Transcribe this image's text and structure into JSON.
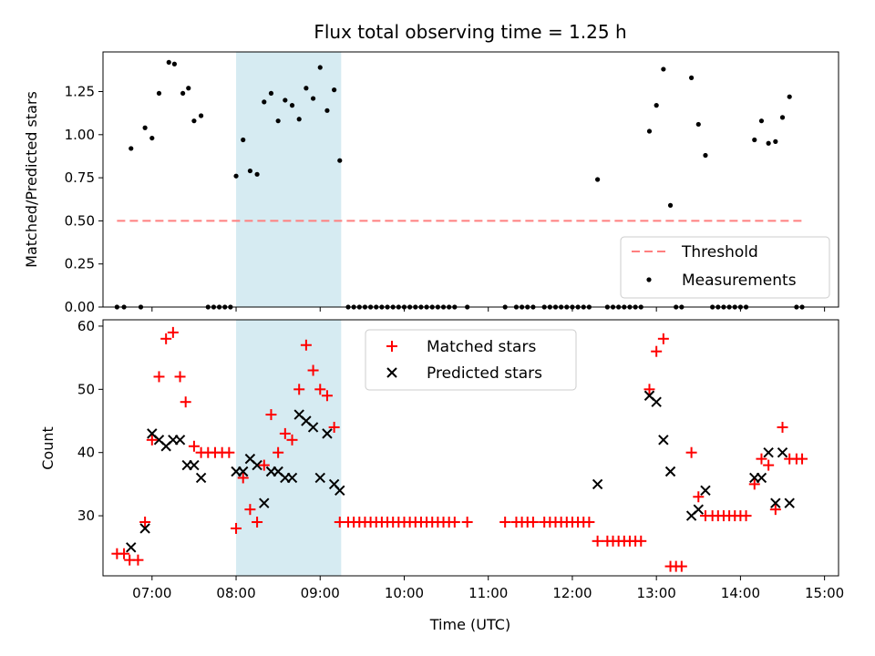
{
  "figure_title": "Flux total observing time = 1.25 h",
  "colors": {
    "threshold": "#ff7f7f",
    "measurement": "#000000",
    "matched": "#ff0000",
    "predicted": "#000000",
    "highlight": "#add8e6"
  },
  "chart_data": [
    {
      "type": "scatter",
      "title": "Flux total observing time = 1.25 h",
      "xlabel": "",
      "ylabel": "Matched/Predicted stars",
      "xlim": [
        "06:25",
        "15:10"
      ],
      "ylim": [
        0,
        1.48
      ],
      "yticks": [
        0,
        0.25,
        0.5,
        0.75,
        1.0,
        1.25
      ],
      "ytick_labels": [
        "0.00",
        "0.25",
        "0.50",
        "0.75",
        "1.00",
        "1.25"
      ],
      "xticks": [
        "07:00",
        "08:00",
        "09:00",
        "10:00",
        "11:00",
        "12:00",
        "13:00",
        "14:00",
        "15:00"
      ],
      "highlight_span": [
        "08:00",
        "09:15"
      ],
      "legend_position": "lower-right",
      "legend": [
        "Threshold",
        "Measurements"
      ],
      "threshold": {
        "name": "Threshold",
        "y": 0.5,
        "x_range": [
          "06:35",
          "14:45"
        ]
      },
      "series": [
        {
          "name": "Measurements",
          "points": [
            [
              "06:35",
              0
            ],
            [
              "06:40",
              0
            ],
            [
              "06:45",
              0.92
            ],
            [
              "06:52",
              0
            ],
            [
              "06:55",
              1.04
            ],
            [
              "07:00",
              0.98
            ],
            [
              "07:05",
              1.24
            ],
            [
              "07:12",
              1.42
            ],
            [
              "07:16",
              1.41
            ],
            [
              "07:22",
              1.24
            ],
            [
              "07:26",
              1.27
            ],
            [
              "07:30",
              1.08
            ],
            [
              "07:35",
              1.11
            ],
            [
              "07:40",
              0
            ],
            [
              "07:44",
              0
            ],
            [
              "07:48",
              0
            ],
            [
              "07:52",
              0
            ],
            [
              "07:56",
              0
            ],
            [
              "08:00",
              0.76
            ],
            [
              "08:05",
              0.97
            ],
            [
              "08:10",
              0.79
            ],
            [
              "08:15",
              0.77
            ],
            [
              "08:20",
              1.19
            ],
            [
              "08:25",
              1.24
            ],
            [
              "08:30",
              1.08
            ],
            [
              "08:35",
              1.2
            ],
            [
              "08:40",
              1.17
            ],
            [
              "08:45",
              1.09
            ],
            [
              "08:50",
              1.27
            ],
            [
              "08:55",
              1.21
            ],
            [
              "09:00",
              1.39
            ],
            [
              "09:05",
              1.14
            ],
            [
              "09:10",
              1.26
            ],
            [
              "09:14",
              0.85
            ],
            [
              "09:20",
              0
            ],
            [
              "09:24",
              0
            ],
            [
              "09:28",
              0
            ],
            [
              "09:32",
              0
            ],
            [
              "09:36",
              0
            ],
            [
              "09:40",
              0
            ],
            [
              "09:44",
              0
            ],
            [
              "09:48",
              0
            ],
            [
              "09:52",
              0
            ],
            [
              "09:56",
              0
            ],
            [
              "10:00",
              0
            ],
            [
              "10:04",
              0
            ],
            [
              "10:08",
              0
            ],
            [
              "10:12",
              0
            ],
            [
              "10:16",
              0
            ],
            [
              "10:20",
              0
            ],
            [
              "10:24",
              0
            ],
            [
              "10:28",
              0
            ],
            [
              "10:32",
              0
            ],
            [
              "10:36",
              0
            ],
            [
              "10:45",
              0
            ],
            [
              "11:12",
              0
            ],
            [
              "11:20",
              0
            ],
            [
              "11:24",
              0
            ],
            [
              "11:28",
              0
            ],
            [
              "11:32",
              0
            ],
            [
              "11:40",
              0
            ],
            [
              "11:44",
              0
            ],
            [
              "11:48",
              0
            ],
            [
              "11:52",
              0
            ],
            [
              "11:56",
              0
            ],
            [
              "12:00",
              0
            ],
            [
              "12:04",
              0
            ],
            [
              "12:08",
              0
            ],
            [
              "12:12",
              0
            ],
            [
              "12:18",
              0.74
            ],
            [
              "12:25",
              0
            ],
            [
              "12:29",
              0
            ],
            [
              "12:33",
              0
            ],
            [
              "12:37",
              0
            ],
            [
              "12:41",
              0
            ],
            [
              "12:45",
              0
            ],
            [
              "12:49",
              0
            ],
            [
              "12:55",
              1.02
            ],
            [
              "13:00",
              1.17
            ],
            [
              "13:05",
              1.38
            ],
            [
              "13:10",
              0.59
            ],
            [
              "13:14",
              0
            ],
            [
              "13:18",
              0
            ],
            [
              "13:25",
              1.33
            ],
            [
              "13:30",
              1.06
            ],
            [
              "13:35",
              0.88
            ],
            [
              "13:40",
              0
            ],
            [
              "13:44",
              0
            ],
            [
              "13:48",
              0
            ],
            [
              "13:52",
              0
            ],
            [
              "13:56",
              0
            ],
            [
              "14:00",
              0
            ],
            [
              "14:04",
              0
            ],
            [
              "14:10",
              0.97
            ],
            [
              "14:15",
              1.08
            ],
            [
              "14:20",
              0.95
            ],
            [
              "14:25",
              0.96
            ],
            [
              "14:30",
              1.1
            ],
            [
              "14:35",
              1.22
            ],
            [
              "14:40",
              0
            ],
            [
              "14:44",
              0
            ]
          ]
        }
      ]
    },
    {
      "type": "scatter",
      "title": "",
      "xlabel": "Time (UTC)",
      "ylabel": "Count",
      "xlim": [
        "06:25",
        "15:10"
      ],
      "ylim": [
        20.5,
        61
      ],
      "yticks": [
        30,
        40,
        50,
        60
      ],
      "ytick_labels": [
        "30",
        "40",
        "50",
        "60"
      ],
      "xticks": [
        "07:00",
        "08:00",
        "09:00",
        "10:00",
        "11:00",
        "12:00",
        "13:00",
        "14:00",
        "15:00"
      ],
      "highlight_span": [
        "08:00",
        "09:15"
      ],
      "legend_position": "top-center",
      "legend": [
        "Matched stars",
        "Predicted stars"
      ],
      "series": [
        {
          "name": "Matched stars",
          "marker": "plus",
          "points": [
            [
              "06:35",
              24
            ],
            [
              "06:40",
              24
            ],
            [
              "06:44",
              23
            ],
            [
              "06:50",
              23
            ],
            [
              "06:55",
              29
            ],
            [
              "07:00",
              42
            ],
            [
              "07:05",
              52
            ],
            [
              "07:10",
              58
            ],
            [
              "07:15",
              59
            ],
            [
              "07:20",
              52
            ],
            [
              "07:24",
              48
            ],
            [
              "07:30",
              41
            ],
            [
              "07:35",
              40
            ],
            [
              "07:40",
              40
            ],
            [
              "07:45",
              40
            ],
            [
              "07:50",
              40
            ],
            [
              "07:55",
              40
            ],
            [
              "08:00",
              28
            ],
            [
              "08:05",
              36
            ],
            [
              "08:10",
              31
            ],
            [
              "08:15",
              29
            ],
            [
              "08:20",
              38
            ],
            [
              "08:25",
              46
            ],
            [
              "08:30",
              40
            ],
            [
              "08:35",
              43
            ],
            [
              "08:40",
              42
            ],
            [
              "08:45",
              50
            ],
            [
              "08:50",
              57
            ],
            [
              "08:55",
              53
            ],
            [
              "09:00",
              50
            ],
            [
              "09:05",
              49
            ],
            [
              "09:10",
              44
            ],
            [
              "09:14",
              29
            ],
            [
              "09:20",
              29
            ],
            [
              "09:24",
              29
            ],
            [
              "09:28",
              29
            ],
            [
              "09:32",
              29
            ],
            [
              "09:36",
              29
            ],
            [
              "09:40",
              29
            ],
            [
              "09:44",
              29
            ],
            [
              "09:48",
              29
            ],
            [
              "09:52",
              29
            ],
            [
              "09:56",
              29
            ],
            [
              "10:00",
              29
            ],
            [
              "10:04",
              29
            ],
            [
              "10:08",
              29
            ],
            [
              "10:12",
              29
            ],
            [
              "10:16",
              29
            ],
            [
              "10:20",
              29
            ],
            [
              "10:24",
              29
            ],
            [
              "10:28",
              29
            ],
            [
              "10:32",
              29
            ],
            [
              "10:36",
              29
            ],
            [
              "10:45",
              29
            ],
            [
              "11:12",
              29
            ],
            [
              "11:20",
              29
            ],
            [
              "11:24",
              29
            ],
            [
              "11:28",
              29
            ],
            [
              "11:32",
              29
            ],
            [
              "11:40",
              29
            ],
            [
              "11:44",
              29
            ],
            [
              "11:48",
              29
            ],
            [
              "11:52",
              29
            ],
            [
              "11:56",
              29
            ],
            [
              "12:00",
              29
            ],
            [
              "12:04",
              29
            ],
            [
              "12:08",
              29
            ],
            [
              "12:12",
              29
            ],
            [
              "12:18",
              26
            ],
            [
              "12:25",
              26
            ],
            [
              "12:29",
              26
            ],
            [
              "12:33",
              26
            ],
            [
              "12:37",
              26
            ],
            [
              "12:41",
              26
            ],
            [
              "12:45",
              26
            ],
            [
              "12:49",
              26
            ],
            [
              "12:55",
              50
            ],
            [
              "13:00",
              56
            ],
            [
              "13:05",
              58
            ],
            [
              "13:10",
              22
            ],
            [
              "13:14",
              22
            ],
            [
              "13:18",
              22
            ],
            [
              "13:25",
              40
            ],
            [
              "13:30",
              33
            ],
            [
              "13:35",
              30
            ],
            [
              "13:40",
              30
            ],
            [
              "13:44",
              30
            ],
            [
              "13:48",
              30
            ],
            [
              "13:52",
              30
            ],
            [
              "13:56",
              30
            ],
            [
              "14:00",
              30
            ],
            [
              "14:04",
              30
            ],
            [
              "14:10",
              35
            ],
            [
              "14:15",
              39
            ],
            [
              "14:20",
              38
            ],
            [
              "14:25",
              31
            ],
            [
              "14:30",
              44
            ],
            [
              "14:35",
              39
            ],
            [
              "14:40",
              39
            ],
            [
              "14:44",
              39
            ]
          ]
        },
        {
          "name": "Predicted stars",
          "marker": "x",
          "points": [
            [
              "06:45",
              25
            ],
            [
              "06:55",
              28
            ],
            [
              "07:00",
              43
            ],
            [
              "07:05",
              42
            ],
            [
              "07:10",
              41
            ],
            [
              "07:15",
              42
            ],
            [
              "07:20",
              42
            ],
            [
              "07:25",
              38
            ],
            [
              "07:30",
              38
            ],
            [
              "07:35",
              36
            ],
            [
              "08:00",
              37
            ],
            [
              "08:05",
              37
            ],
            [
              "08:10",
              39
            ],
            [
              "08:15",
              38
            ],
            [
              "08:20",
              32
            ],
            [
              "08:25",
              37
            ],
            [
              "08:30",
              37
            ],
            [
              "08:35",
              36
            ],
            [
              "08:40",
              36
            ],
            [
              "08:45",
              46
            ],
            [
              "08:50",
              45
            ],
            [
              "08:55",
              44
            ],
            [
              "09:00",
              36
            ],
            [
              "09:05",
              43
            ],
            [
              "09:10",
              35
            ],
            [
              "09:14",
              34
            ],
            [
              "12:18",
              35
            ],
            [
              "12:55",
              49
            ],
            [
              "13:00",
              48
            ],
            [
              "13:05",
              42
            ],
            [
              "13:10",
              37
            ],
            [
              "13:25",
              30
            ],
            [
              "13:30",
              31
            ],
            [
              "13:35",
              34
            ],
            [
              "14:10",
              36
            ],
            [
              "14:15",
              36
            ],
            [
              "14:20",
              40
            ],
            [
              "14:25",
              32
            ],
            [
              "14:30",
              40
            ],
            [
              "14:35",
              32
            ]
          ]
        }
      ]
    }
  ]
}
